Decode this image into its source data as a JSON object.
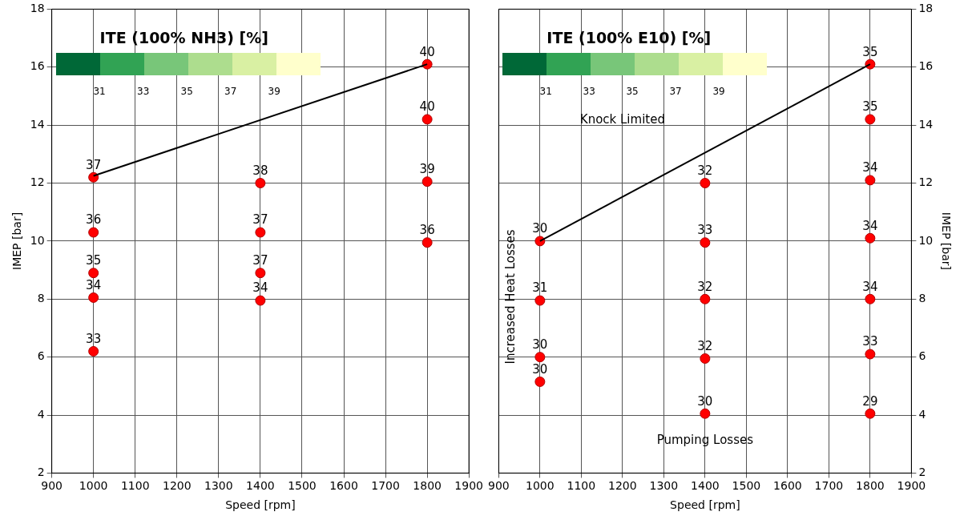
{
  "chart_data": [
    {
      "type": "scatter",
      "xlabel": "Speed [rpm]",
      "ylabel": "IMEP [bar]",
      "clabel": "ITE (100% NH3) [%]",
      "xlim": [
        900,
        1900
      ],
      "xticks": [
        900,
        1000,
        1100,
        1200,
        1300,
        1400,
        1500,
        1600,
        1700,
        1800,
        1900
      ],
      "ylim": [
        2,
        18
      ],
      "yticks": [
        2,
        4,
        6,
        8,
        10,
        12,
        14,
        16,
        18
      ],
      "grid": true,
      "legend": false,
      "marker": "circle",
      "annotations": [
        "31",
        "33",
        "35",
        "37",
        "39",
        {
          "text": "37",
          "x": 1000,
          "y": 12.2
        },
        {
          "text": "36",
          "x": 1000,
          "y": 10.3
        },
        {
          "text": "35",
          "x": 1000,
          "y": 8.9
        },
        {
          "text": "34",
          "x": 1000,
          "y": 8.05
        },
        {
          "text": "33",
          "x": 1000,
          "y": 6.2
        },
        {
          "text": "38",
          "x": 1400,
          "y": 12.0
        },
        {
          "text": "37",
          "x": 1400,
          "y": 10.3
        },
        {
          "text": "37",
          "x": 1400,
          "y": 8.9
        },
        {
          "text": "34",
          "x": 1400,
          "y": 7.95
        },
        {
          "text": "40",
          "x": 1800,
          "y": 16.1
        },
        {
          "text": "40",
          "x": 1800,
          "y": 14.2
        },
        {
          "text": "39",
          "x": 1800,
          "y": 12.05
        },
        {
          "text": "36",
          "x": 1800,
          "y": 9.95
        }
      ],
      "series": [
        {
          "type": "line",
          "color": "#000000",
          "marker": "none",
          "x": [
            1000,
            1800
          ],
          "values": [
            12.25,
            16.1
          ]
        },
        {
          "color": "#ff0000",
          "x": [
            1000,
            1000,
            1000,
            1000,
            1000,
            1400,
            1400,
            1400,
            1400,
            1800,
            1800,
            1800,
            1800
          ],
          "values": [
            12.2,
            10.3,
            8.9,
            8.05,
            6.2,
            12.0,
            10.3,
            8.9,
            7.95,
            16.1,
            14.2,
            12.05,
            9.95
          ]
        }
      ]
    },
    {
      "type": "scatter",
      "xlabel": "Speed [rpm]",
      "ylabel": "IMEP [bar]",
      "clabel": "ITE (100% E10) [%]",
      "xlim": [
        900,
        1900
      ],
      "xticks": [
        900,
        1000,
        1100,
        1200,
        1300,
        1400,
        1500,
        1600,
        1700,
        1800,
        1900
      ],
      "ylim": [
        2,
        18
      ],
      "yticks": [
        2,
        4,
        6,
        8,
        10,
        12,
        14,
        16,
        18
      ],
      "grid": true,
      "legend": false,
      "marker": "circle",
      "annotations": [
        "31",
        "33",
        "35",
        "37",
        "39",
        "Knock Limited",
        "Increased Heat Losses",
        "Pumping Losses",
        {
          "text": "30",
          "x": 1000,
          "y": 10.0
        },
        {
          "text": "31",
          "x": 1000,
          "y": 7.95
        },
        {
          "text": "30",
          "x": 1000,
          "y": 6.0
        },
        {
          "text": "30",
          "x": 1000,
          "y": 5.15
        },
        {
          "text": "32",
          "x": 1400,
          "y": 12.0
        },
        {
          "text": "33",
          "x": 1400,
          "y": 9.95
        },
        {
          "text": "32",
          "x": 1400,
          "y": 8.0
        },
        {
          "text": "32",
          "x": 1400,
          "y": 5.95
        },
        {
          "text": "30",
          "x": 1400,
          "y": 4.05
        },
        {
          "text": "35",
          "x": 1800,
          "y": 16.1
        },
        {
          "text": "35",
          "x": 1800,
          "y": 14.2
        },
        {
          "text": "34",
          "x": 1800,
          "y": 12.1
        },
        {
          "text": "34",
          "x": 1800,
          "y": 10.1
        },
        {
          "text": "34",
          "x": 1800,
          "y": 8.0
        },
        {
          "text": "33",
          "x": 1800,
          "y": 6.1
        },
        {
          "text": "29",
          "x": 1800,
          "y": 4.05
        }
      ],
      "series": [
        {
          "type": "line",
          "color": "#000000",
          "marker": "none",
          "x": [
            1000,
            1800
          ],
          "values": [
            10.0,
            16.1
          ]
        },
        {
          "color": "#ff0000",
          "x": [
            1000,
            1000,
            1000,
            1000,
            1400,
            1400,
            1400,
            1400,
            1400,
            1800,
            1800,
            1800,
            1800,
            1800,
            1800,
            1800
          ],
          "values": [
            10.0,
            7.95,
            6.0,
            5.15,
            12.0,
            9.95,
            8.0,
            5.95,
            4.05,
            16.1,
            14.2,
            12.1,
            10.1,
            8.0,
            6.1,
            4.05
          ]
        }
      ]
    }
  ]
}
